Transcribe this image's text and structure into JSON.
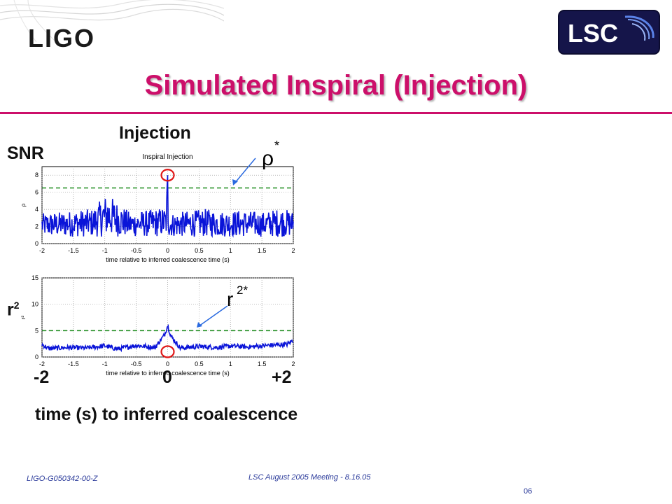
{
  "slide": {
    "logo_left": "LIGO",
    "logo_right": "LSC",
    "title": "Simulated Inspiral (Injection)",
    "label_injection": "Injection",
    "label_snr": "SNR",
    "label_r2_base": "r",
    "label_r2_sup": "2",
    "label_rho_star_base": "ρ",
    "label_rho_star_sup": "*",
    "label_r2star_base": "r",
    "label_r2star_sup": "2*",
    "bottom_tick_left": "-2",
    "bottom_tick_mid": "0",
    "bottom_tick_right": "+2",
    "bottom_axis_label": "time (s) to inferred coalescence",
    "footer_left": "LIGO-G050342-00-Z",
    "footer_center": "LSC August 2005 Meeting - 8.16.05",
    "page_number": "06",
    "colors": {
      "title": "#cc0f6a",
      "trace": "#0a14d8",
      "threshold": "#1a8a1a",
      "marker": "#e01818",
      "arrow": "#2a6ae0",
      "footer": "#2a3a9a"
    }
  },
  "chart_data": [
    {
      "type": "line",
      "title": "Inspiral Injection",
      "xlabel": "time relative to inferred coalescence time (s)",
      "ylabel": "ρ",
      "xlim": [
        -2,
        2
      ],
      "ylim": [
        0,
        9
      ],
      "x_ticks": [
        -2,
        -1.5,
        -1,
        -0.5,
        0,
        0.5,
        1,
        1.5,
        2
      ],
      "x_tick_labels": [
        "-2",
        "-1.5",
        "-1",
        "-0.5",
        "0",
        "0.5",
        "1",
        "1.5",
        "2"
      ],
      "y_ticks": [
        0,
        2,
        4,
        6,
        8
      ],
      "y_tick_labels": [
        "0",
        "2",
        "4",
        "6",
        "8"
      ],
      "grid": true,
      "threshold": 6.5,
      "series": [
        {
          "x": [
            -2.0,
            -1.6,
            -1.2,
            -0.96,
            -0.6,
            -0.3,
            -0.02,
            0.0,
            0.02,
            0.3,
            0.6,
            0.9,
            1.2,
            1.5,
            1.8,
            2.0
          ],
          "values": [
            2.4,
            2.6,
            2.8,
            4.2,
            2.5,
            2.7,
            3.0,
            8.0,
            2.4,
            2.6,
            2.8,
            2.6,
            2.7,
            2.5,
            2.9,
            2.6
          ],
          "baseline": 0.8,
          "noise_band": [
            0.0,
            4.0
          ]
        }
      ],
      "marker": {
        "x": 0.0,
        "y": 8.0
      }
    },
    {
      "type": "line",
      "xlabel": "time relative to inferred coalescence time (s)",
      "ylabel": "r²",
      "xlim": [
        -2,
        2
      ],
      "ylim": [
        0,
        15
      ],
      "x_ticks": [
        -2,
        -1.5,
        -1,
        -0.5,
        0,
        0.5,
        1,
        1.5,
        2
      ],
      "x_tick_labels": [
        "-2",
        "-1.5",
        "-1",
        "-0.5",
        "0",
        "0.5",
        "1",
        "1.5",
        "2"
      ],
      "y_ticks": [
        0,
        5,
        10,
        15
      ],
      "y_tick_labels": [
        "0",
        "5",
        "10",
        "15"
      ],
      "grid": true,
      "threshold": 5,
      "series": [
        {
          "x": [
            -2.0,
            -1.9,
            -1.6,
            -1.3,
            -1.0,
            -0.8,
            -0.5,
            -0.2,
            -0.05,
            0.0,
            0.05,
            0.2,
            0.5,
            0.8,
            1.0,
            1.3,
            1.6,
            1.9,
            2.0
          ],
          "values": [
            2.4,
            1.6,
            1.8,
            1.7,
            2.1,
            1.5,
            2.2,
            1.8,
            4.2,
            6.0,
            4.0,
            1.7,
            2.0,
            1.8,
            2.1,
            1.9,
            2.2,
            2.4,
            3.2
          ]
        }
      ],
      "marker": {
        "x": 0.0,
        "y": 1.0
      }
    }
  ]
}
